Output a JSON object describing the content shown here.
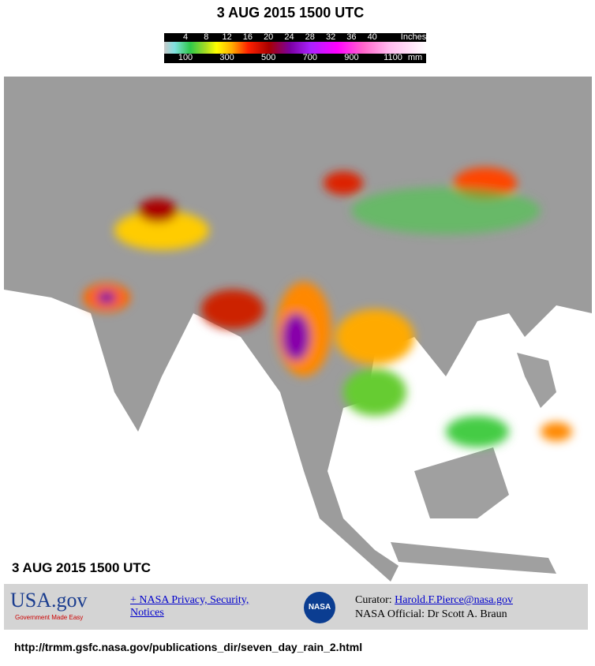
{
  "header": {
    "title": "3 AUG 2015 1500 UTC"
  },
  "colorbar": {
    "inches": [
      4,
      8,
      12,
      16,
      20,
      24,
      28,
      32,
      36,
      40
    ],
    "inches_unit": "Inches",
    "mm": [
      100,
      300,
      500,
      700,
      900,
      1100
    ],
    "mm_unit": "mm"
  },
  "map": {
    "label": "3 AUG 2015 1500 UTC"
  },
  "footer": {
    "usa_logo": "USA.gov",
    "usa_tagline": "Government Made Easy",
    "privacy_link": "+ NASA Privacy, Security, Notices",
    "nasa_logo": "NASA",
    "curator_label": "Curator:",
    "curator_email": "Harold.F.Pierce@nasa.gov",
    "official": "NASA Official: Dr Scott A. Braun"
  },
  "url": "http://trmm.gsfc.nasa.gov/publications_dir/seven_day_rain_2.html"
}
